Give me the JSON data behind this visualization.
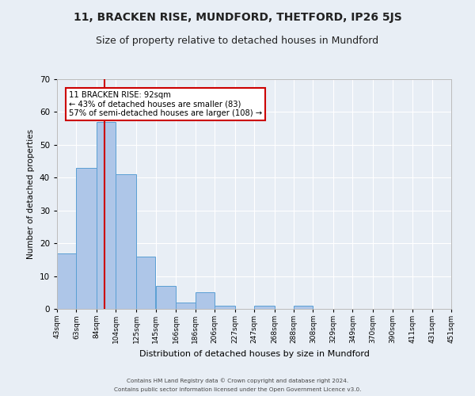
{
  "title": "11, BRACKEN RISE, MUNDFORD, THETFORD, IP26 5JS",
  "subtitle": "Size of property relative to detached houses in Mundford",
  "xlabel": "Distribution of detached houses by size in Mundford",
  "ylabel": "Number of detached properties",
  "bin_labels": [
    "43sqm",
    "63sqm",
    "84sqm",
    "104sqm",
    "125sqm",
    "145sqm",
    "166sqm",
    "186sqm",
    "206sqm",
    "227sqm",
    "247sqm",
    "268sqm",
    "288sqm",
    "308sqm",
    "329sqm",
    "349sqm",
    "370sqm",
    "390sqm",
    "411sqm",
    "431sqm",
    "451sqm"
  ],
  "bin_edges": [
    43,
    63,
    84,
    104,
    125,
    145,
    166,
    186,
    206,
    227,
    247,
    268,
    288,
    308,
    329,
    349,
    370,
    390,
    411,
    431,
    451
  ],
  "counts": [
    17,
    43,
    57,
    41,
    16,
    7,
    2,
    5,
    1,
    0,
    1,
    0,
    1,
    0,
    0,
    0,
    0,
    0,
    0,
    0
  ],
  "bar_color": "#aec6e8",
  "bar_edgecolor": "#5a9fd4",
  "property_size": 92,
  "red_line_color": "#cc0000",
  "annotation_text": "11 BRACKEN RISE: 92sqm\n← 43% of detached houses are smaller (83)\n57% of semi-detached houses are larger (108) →",
  "annotation_box_edgecolor": "#cc0000",
  "annotation_box_facecolor": "#ffffff",
  "ylim": [
    0,
    70
  ],
  "yticks": [
    0,
    10,
    20,
    30,
    40,
    50,
    60,
    70
  ],
  "footer_line1": "Contains HM Land Registry data © Crown copyright and database right 2024.",
  "footer_line2": "Contains public sector information licensed under the Open Government Licence v3.0.",
  "bg_color": "#e8eef5",
  "grid_color": "#ffffff",
  "title_fontsize": 10,
  "subtitle_fontsize": 9
}
